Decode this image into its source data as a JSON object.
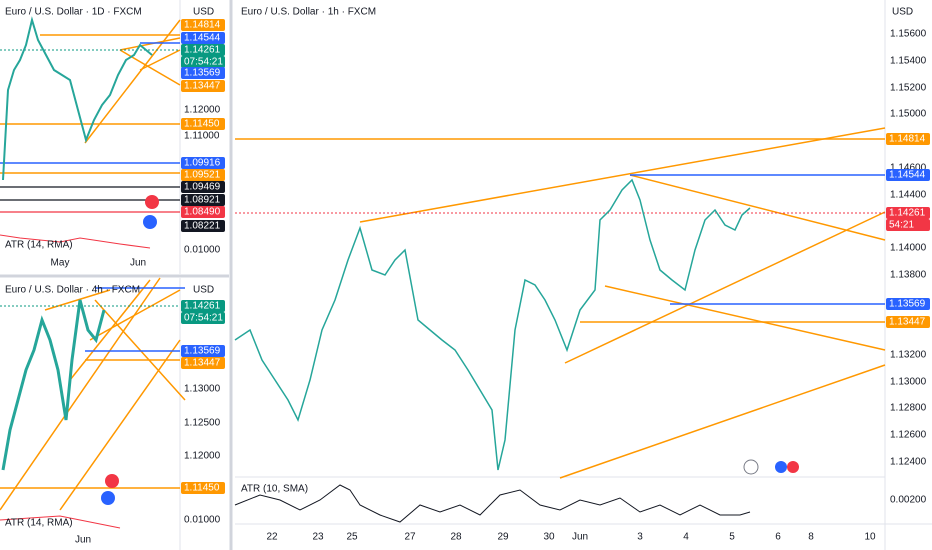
{
  "panels": [
    {
      "title": "Euro / U.S. Dollar · 1D · FXCM",
      "currency": "USD",
      "axis": [
        "1.12000",
        "1.11000"
      ],
      "tags": [
        {
          "text": "1.14814",
          "color": "#ff9800"
        },
        {
          "text": "1.14544",
          "color": "#2962ff"
        },
        {
          "text": "1.14261",
          "color": "#089981"
        },
        {
          "text": "07:54:21",
          "color": "#089981"
        },
        {
          "text": "1.13569",
          "color": "#2962ff"
        },
        {
          "text": "1.13447",
          "color": "#ff9800"
        },
        {
          "text": "1.11450",
          "color": "#ff9800"
        },
        {
          "text": "1.09916",
          "color": "#2962ff"
        },
        {
          "text": "1.09521",
          "color": "#ff9800"
        },
        {
          "text": "1.09469",
          "color": "#131722"
        },
        {
          "text": "1.08921",
          "color": "#131722"
        },
        {
          "text": "1.08490",
          "color": "#f23645"
        },
        {
          "text": "1.08221",
          "color": "#131722"
        }
      ],
      "indicator": "ATR (14, RMA)",
      "indicator_axis": "0.01000",
      "dates": [
        "May",
        "Jun"
      ]
    },
    {
      "title": "Euro / U.S. Dollar · 4h · FXCM",
      "currency": "USD",
      "axis": [
        "1.13000",
        "1.12500",
        "1.12000"
      ],
      "tags": [
        {
          "text": "1.14261",
          "color": "#089981"
        },
        {
          "text": "07:54:21",
          "color": "#089981"
        },
        {
          "text": "1.13569",
          "color": "#2962ff"
        },
        {
          "text": "1.13447",
          "color": "#ff9800"
        },
        {
          "text": "1.11450",
          "color": "#ff9800"
        }
      ],
      "indicator": "ATR (14, RMA)",
      "indicator_axis": "0.01000",
      "dates": [
        "Jun"
      ]
    },
    {
      "title": "Euro / U.S. Dollar · 1h · FXCM",
      "currency": "USD",
      "axis": [
        "1.15600",
        "1.15400",
        "1.15200",
        "1.15000",
        "1.14600",
        "1.14400",
        "1.14000",
        "1.13800",
        "1.13200",
        "1.13000",
        "1.12800",
        "1.12600",
        "1.12400"
      ],
      "tags": [
        {
          "text": "1.14814",
          "color": "#ff9800"
        },
        {
          "text": "1.14544",
          "color": "#2962ff"
        },
        {
          "text": "1.14261",
          "color": "#f23645"
        },
        {
          "text": "54:21",
          "color": "#f23645"
        },
        {
          "text": "1.13569",
          "color": "#2962ff"
        },
        {
          "text": "1.13447",
          "color": "#ff9800"
        }
      ],
      "indicator": "ATR (10, SMA)",
      "indicator_axis": "0.00200",
      "dates": [
        "22",
        "23",
        "25",
        "27",
        "28",
        "29",
        "30",
        "Jun",
        "3",
        "4",
        "5",
        "6",
        "8",
        "10"
      ]
    }
  ]
}
